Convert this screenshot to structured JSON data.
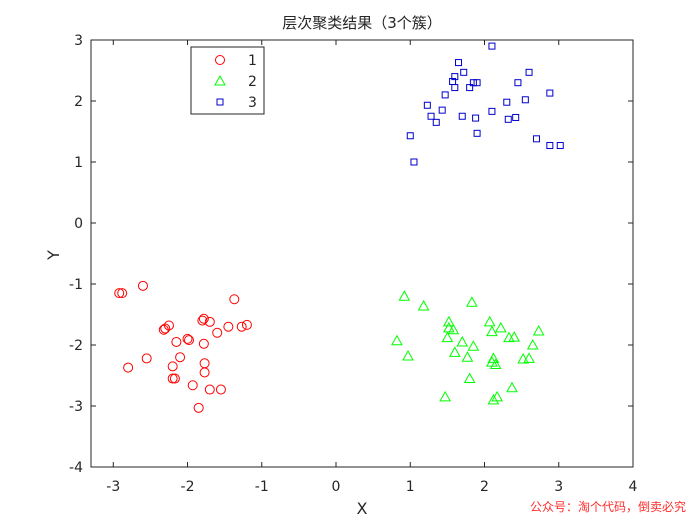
{
  "chart_data": {
    "type": "scatter",
    "title": "层次聚类结果（3个簇）",
    "xlabel": "X",
    "ylabel": "Y",
    "xlim": [
      -3.3,
      4
    ],
    "ylim": [
      -4,
      3
    ],
    "xticks": [
      "-3",
      "-2",
      "-1",
      "0",
      "1",
      "2",
      "3",
      "4"
    ],
    "yticks": [
      "-4",
      "-3",
      "-2",
      "-1",
      "0",
      "1",
      "2",
      "3"
    ],
    "grid": false,
    "legend": "top-left",
    "series": [
      {
        "name": "1",
        "marker": "circle",
        "color": "#ff0000",
        "points": [
          [
            -2.92,
            -1.15
          ],
          [
            -2.88,
            -1.15
          ],
          [
            -2.6,
            -1.03
          ],
          [
            -2.25,
            -1.68
          ],
          [
            -2.3,
            -1.73
          ],
          [
            -2.32,
            -1.75
          ],
          [
            -2.8,
            -2.37
          ],
          [
            -2.55,
            -2.22
          ],
          [
            -2.2,
            -2.35
          ],
          [
            -2.2,
            -2.55
          ],
          [
            -2.17,
            -2.55
          ],
          [
            -2.15,
            -1.95
          ],
          [
            -2.1,
            -2.2
          ],
          [
            -2.0,
            -1.9
          ],
          [
            -1.98,
            -1.92
          ],
          [
            -1.93,
            -2.66
          ],
          [
            -1.85,
            -3.03
          ],
          [
            -1.8,
            -1.6
          ],
          [
            -1.78,
            -1.57
          ],
          [
            -1.78,
            -1.98
          ],
          [
            -1.77,
            -2.3
          ],
          [
            -1.77,
            -2.45
          ],
          [
            -1.7,
            -1.62
          ],
          [
            -1.7,
            -2.73
          ],
          [
            -1.6,
            -1.8
          ],
          [
            -1.55,
            -2.73
          ],
          [
            -1.45,
            -1.7
          ],
          [
            -1.37,
            -1.25
          ],
          [
            -1.27,
            -1.7
          ],
          [
            -1.2,
            -1.67
          ]
        ]
      },
      {
        "name": "2",
        "marker": "triangle",
        "color": "#00ff00",
        "points": [
          [
            0.82,
            -1.93
          ],
          [
            0.92,
            -1.2
          ],
          [
            0.97,
            -2.18
          ],
          [
            1.18,
            -1.36
          ],
          [
            1.47,
            -2.85
          ],
          [
            1.5,
            -1.88
          ],
          [
            1.52,
            -1.72
          ],
          [
            1.52,
            -1.62
          ],
          [
            1.58,
            -1.75
          ],
          [
            1.6,
            -2.12
          ],
          [
            1.7,
            -1.95
          ],
          [
            1.77,
            -2.2
          ],
          [
            1.8,
            -2.55
          ],
          [
            1.83,
            -1.3
          ],
          [
            1.85,
            -2.02
          ],
          [
            2.07,
            -1.62
          ],
          [
            2.1,
            -1.78
          ],
          [
            2.1,
            -2.28
          ],
          [
            2.12,
            -2.22
          ],
          [
            2.12,
            -2.9
          ],
          [
            2.15,
            -2.32
          ],
          [
            2.17,
            -2.85
          ],
          [
            2.22,
            -1.72
          ],
          [
            2.33,
            -1.88
          ],
          [
            2.37,
            -2.7
          ],
          [
            2.4,
            -1.87
          ],
          [
            2.52,
            -2.23
          ],
          [
            2.6,
            -2.22
          ],
          [
            2.65,
            -2.0
          ],
          [
            2.73,
            -1.77
          ]
        ]
      },
      {
        "name": "3",
        "marker": "square",
        "color": "#0000cc",
        "points": [
          [
            1.0,
            1.43
          ],
          [
            1.05,
            1.0
          ],
          [
            1.23,
            1.93
          ],
          [
            1.28,
            1.75
          ],
          [
            1.35,
            1.65
          ],
          [
            1.43,
            1.85
          ],
          [
            1.47,
            2.1
          ],
          [
            1.57,
            2.32
          ],
          [
            1.6,
            2.22
          ],
          [
            1.6,
            2.4
          ],
          [
            1.65,
            2.63
          ],
          [
            1.7,
            1.75
          ],
          [
            1.72,
            2.47
          ],
          [
            1.8,
            2.22
          ],
          [
            1.85,
            2.3
          ],
          [
            1.88,
            1.72
          ],
          [
            1.9,
            1.47
          ],
          [
            1.9,
            2.3
          ],
          [
            2.1,
            1.83
          ],
          [
            2.1,
            2.9
          ],
          [
            2.3,
            1.98
          ],
          [
            2.32,
            1.7
          ],
          [
            2.42,
            1.73
          ],
          [
            2.45,
            2.3
          ],
          [
            2.55,
            2.02
          ],
          [
            2.6,
            2.47
          ],
          [
            2.7,
            1.38
          ],
          [
            2.88,
            2.13
          ],
          [
            2.88,
            1.27
          ],
          [
            3.02,
            1.27
          ]
        ]
      }
    ]
  },
  "watermark": "公众号：淘个代码，倒卖必究"
}
